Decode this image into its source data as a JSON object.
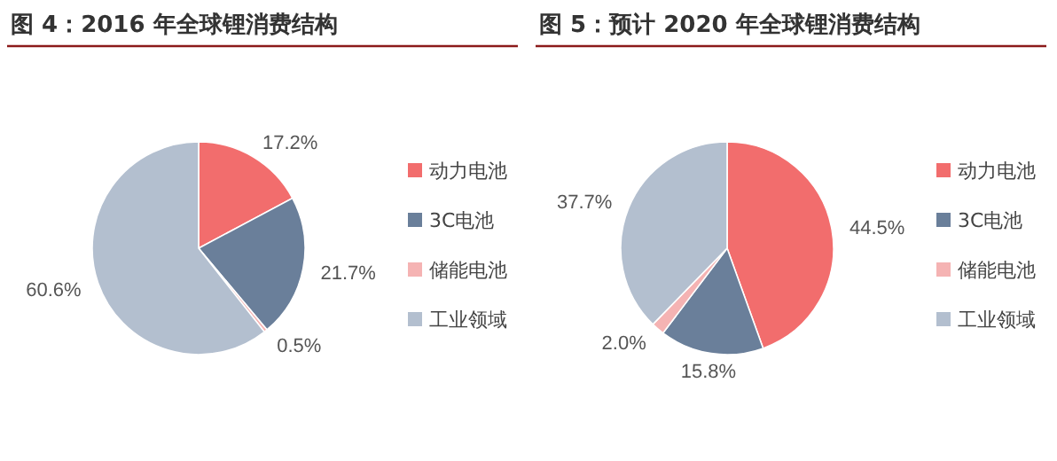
{
  "chart_data": [
    {
      "type": "pie",
      "title": "图 4：2016 年全球锂消费结构",
      "categories": [
        "动力电池",
        "3C电池",
        "储能电池",
        "工业领域"
      ],
      "values": [
        17.2,
        21.7,
        0.5,
        60.6
      ],
      "value_labels": [
        "17.2%",
        "21.7%",
        "0.5%",
        "60.6%"
      ],
      "colors": [
        "#f26d6d",
        "#6a7f9a",
        "#f5b3b3",
        "#b3bfcf"
      ],
      "legend": "right"
    },
    {
      "type": "pie",
      "title": "图 5：预计 2020 年全球锂消费结构",
      "categories": [
        "动力电池",
        "3C电池",
        "储能电池",
        "工业领域"
      ],
      "values": [
        44.5,
        15.8,
        2.0,
        37.7
      ],
      "value_labels": [
        "44.5%",
        "15.8%",
        "2.0%",
        "37.7%"
      ],
      "colors": [
        "#f26d6d",
        "#6a7f9a",
        "#f5b3b3",
        "#b3bfcf"
      ],
      "legend": "right"
    }
  ]
}
